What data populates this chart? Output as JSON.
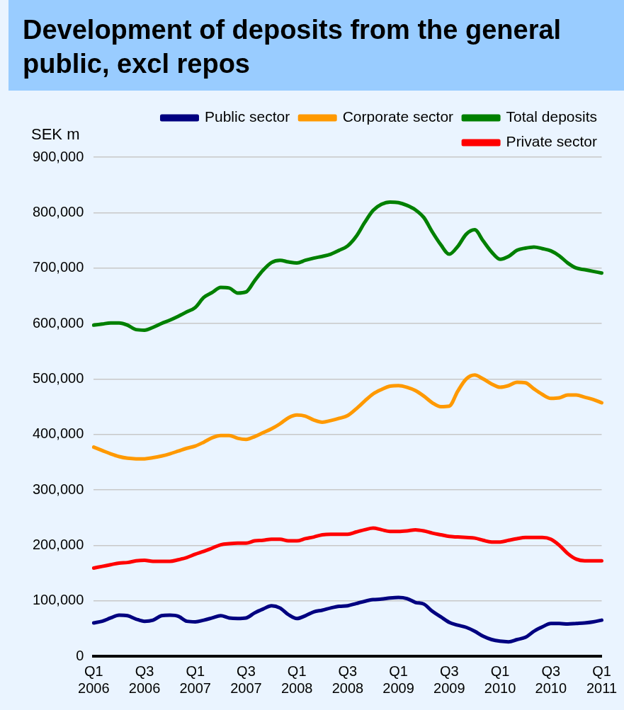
{
  "chart_data": {
    "type": "line",
    "title": "Development of deposits from the general public, excl repos",
    "ylabel": "SEK m",
    "categories": [
      "Q1\n2006",
      null,
      null,
      null,
      null,
      null,
      "Q3\n2006",
      null,
      null,
      null,
      null,
      null,
      "Q1\n2007",
      null,
      null,
      null,
      null,
      null,
      "Q3\n2007",
      null,
      null,
      null,
      null,
      null,
      "Q1\n2008",
      null,
      null,
      null,
      null,
      null,
      "Q3\n2008",
      null,
      null,
      null,
      null,
      null,
      "Q1\n2009",
      null,
      null,
      null,
      null,
      null,
      "Q3\n2009",
      null,
      null,
      null,
      null,
      null,
      "Q1\n2010",
      null,
      null,
      null,
      null,
      null,
      "Q3\n2010",
      null,
      null,
      null,
      null,
      null,
      "Q1\n2011"
    ],
    "series": [
      {
        "name": "Public sector",
        "color": "#000080",
        "values": [
          60000,
          63000,
          69000,
          74000,
          73000,
          67000,
          63000,
          65000,
          73000,
          74000,
          72000,
          63000,
          62000,
          65000,
          69000,
          73000,
          69000,
          68000,
          69000,
          78000,
          85000,
          91000,
          87000,
          75000,
          68000,
          73000,
          80000,
          83000,
          87000,
          90000,
          91000,
          95000,
          99000,
          102000,
          103000,
          105000,
          106000,
          104000,
          97000,
          94000,
          81000,
          71000,
          61000,
          56000,
          52000,
          45000,
          36000,
          30000,
          27000,
          26000,
          30000,
          34000,
          45000,
          53000,
          59000,
          59000,
          58000,
          59000,
          60000,
          62000,
          65000
        ]
      },
      {
        "name": "Corporate sector",
        "color": "#ff9900",
        "values": [
          377000,
          371000,
          365000,
          360000,
          357000,
          356000,
          356000,
          358000,
          361000,
          365000,
          370000,
          375000,
          379000,
          386000,
          394000,
          398000,
          398000,
          393000,
          391000,
          396000,
          403000,
          410000,
          419000,
          430000,
          435000,
          433000,
          426000,
          422000,
          425000,
          429000,
          434000,
          446000,
          460000,
          473000,
          481000,
          487000,
          488000,
          485000,
          479000,
          469000,
          457000,
          450000,
          451000,
          478000,
          500000,
          507000,
          500000,
          491000,
          485000,
          488000,
          494000,
          493000,
          482000,
          472000,
          465000,
          466000,
          471000,
          471000,
          467000,
          463000,
          457000
        ]
      },
      {
        "name": "Total deposits",
        "color": "#008000",
        "values": [
          597000,
          599000,
          601000,
          601000,
          597000,
          589000,
          588000,
          593000,
          600000,
          606000,
          613000,
          621000,
          629000,
          647000,
          656000,
          665000,
          664000,
          655000,
          657000,
          677000,
          696000,
          710000,
          714000,
          711000,
          709000,
          714000,
          718000,
          721000,
          725000,
          732000,
          740000,
          757000,
          782000,
          804000,
          815000,
          819000,
          818000,
          813000,
          805000,
          791000,
          765000,
          742000,
          725000,
          739000,
          761000,
          769000,
          749000,
          729000,
          716000,
          721000,
          732000,
          736000,
          738000,
          735000,
          731000,
          722000,
          709000,
          700000,
          697000,
          694000,
          691000
        ]
      },
      {
        "name": "Private sector",
        "color": "#ff0000",
        "values": [
          159000,
          162000,
          165000,
          168000,
          169000,
          172000,
          173000,
          171000,
          171000,
          171000,
          174000,
          178000,
          184000,
          189000,
          195000,
          201000,
          203000,
          204000,
          204000,
          208000,
          209000,
          211000,
          211000,
          208000,
          208000,
          212000,
          215000,
          219000,
          220000,
          220000,
          220000,
          224000,
          228000,
          231000,
          228000,
          225000,
          225000,
          226000,
          228000,
          226000,
          222000,
          219000,
          216000,
          215000,
          214000,
          213000,
          209000,
          206000,
          206000,
          209000,
          212000,
          214000,
          214000,
          214000,
          211000,
          200000,
          185000,
          175000,
          172000,
          172000,
          172000
        ]
      }
    ],
    "ylim": [
      0,
      900000
    ],
    "yticks": [
      0,
      {
        "value": 100000,
        "label": "100,000"
      },
      {
        "value": 200000,
        "label": "200,000"
      },
      {
        "value": 300000,
        "label": "300,000"
      },
      {
        "value": 400000,
        "label": "400,000"
      },
      {
        "value": 500000,
        "label": "500,000"
      },
      {
        "value": 600000,
        "label": "600,000"
      },
      {
        "value": 700000,
        "label": "700,000"
      },
      {
        "value": 800000,
        "label": "800,000"
      },
      {
        "value": 900000,
        "label": "900,000"
      }
    ],
    "grid": "y",
    "legend": "top",
    "marker": "none",
    "line_style": "solid"
  }
}
